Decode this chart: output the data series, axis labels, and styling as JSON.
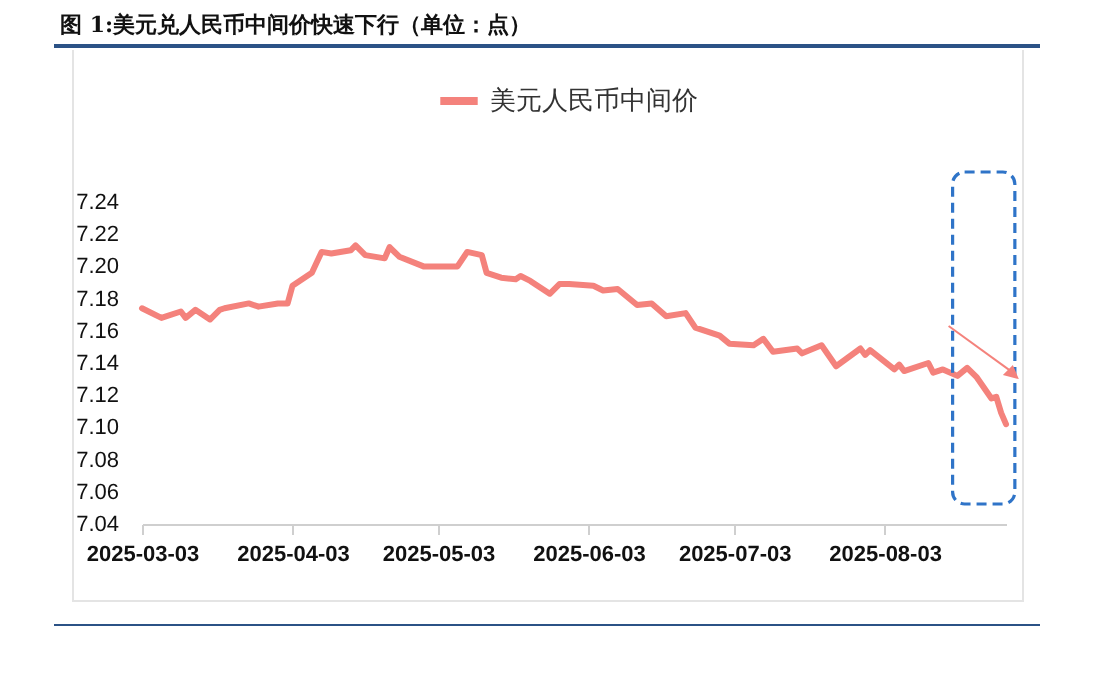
{
  "chart_data": {
    "type": "line",
    "title": "图 1:美元兑人民币中间价快速下行（单位：点）",
    "x": [
      "2025-03-03",
      "2025-03-07",
      "2025-03-11",
      "2025-03-12",
      "2025-03-14",
      "2025-03-17",
      "2025-03-19",
      "2025-03-20",
      "2025-03-25",
      "2025-03-27",
      "2025-03-31",
      "2025-04-02",
      "2025-04-03",
      "2025-04-07",
      "2025-04-09",
      "2025-04-11",
      "2025-04-15",
      "2025-04-16",
      "2025-04-18",
      "2025-04-22",
      "2025-04-23",
      "2025-04-25",
      "2025-04-30",
      "2025-05-07",
      "2025-05-09",
      "2025-05-12",
      "2025-05-13",
      "2025-05-16",
      "2025-05-19",
      "2025-05-20",
      "2025-05-22",
      "2025-05-26",
      "2025-05-28",
      "2025-05-30",
      "2025-06-04",
      "2025-06-06",
      "2025-06-09",
      "2025-06-13",
      "2025-06-16",
      "2025-06-19",
      "2025-06-23",
      "2025-06-25",
      "2025-06-30",
      "2025-07-02",
      "2025-07-07",
      "2025-07-09",
      "2025-07-11",
      "2025-07-16",
      "2025-07-17",
      "2025-07-21",
      "2025-07-24",
      "2025-07-29",
      "2025-07-30",
      "2025-07-31",
      "2025-08-05",
      "2025-08-06",
      "2025-08-07",
      "2025-08-12",
      "2025-08-13",
      "2025-08-15",
      "2025-08-18",
      "2025-08-20",
      "2025-08-22",
      "2025-08-25",
      "2025-08-26",
      "2025-08-27",
      "2025-08-28"
    ],
    "series": [
      {
        "name": "美元人民币中间价",
        "color": "#f4827c",
        "values": [
          7.174,
          7.168,
          7.172,
          7.168,
          7.173,
          7.167,
          7.173,
          7.174,
          7.177,
          7.175,
          7.177,
          7.177,
          7.188,
          7.196,
          7.209,
          7.208,
          7.21,
          7.213,
          7.207,
          7.205,
          7.212,
          7.206,
          7.2,
          7.2,
          7.209,
          7.207,
          7.196,
          7.193,
          7.192,
          7.194,
          7.191,
          7.183,
          7.189,
          7.189,
          7.188,
          7.185,
          7.186,
          7.176,
          7.177,
          7.169,
          7.171,
          7.162,
          7.157,
          7.152,
          7.151,
          7.155,
          7.147,
          7.149,
          7.146,
          7.151,
          7.138,
          7.149,
          7.145,
          7.148,
          7.136,
          7.139,
          7.135,
          7.14,
          7.134,
          7.136,
          7.132,
          7.137,
          7.131,
          7.118,
          7.119,
          7.109,
          7.102
        ]
      }
    ],
    "xlim": [
      "2025-03-03",
      "2025-08-28"
    ],
    "xticks": [
      "2025-03-03",
      "2025-04-03",
      "2025-05-03",
      "2025-06-03",
      "2025-07-03",
      "2025-08-03"
    ],
    "ylim": [
      7.04,
      7.24
    ],
    "yticks": [
      {
        "value": 7.04,
        "label": "7.04"
      },
      {
        "value": 7.06,
        "label": "7.06"
      },
      {
        "value": 7.08,
        "label": "7.08"
      },
      {
        "value": 7.1,
        "label": "7.10"
      },
      {
        "value": 7.12,
        "label": "7.12"
      },
      {
        "value": 7.14,
        "label": "7.14"
      },
      {
        "value": 7.16,
        "label": "7.16"
      },
      {
        "value": 7.18,
        "label": "7.18"
      },
      {
        "value": 7.2,
        "label": "7.20"
      },
      {
        "value": 7.22,
        "label": "7.22"
      },
      {
        "value": 7.24,
        "label": "7.24"
      }
    ],
    "legend": "top"
  }
}
